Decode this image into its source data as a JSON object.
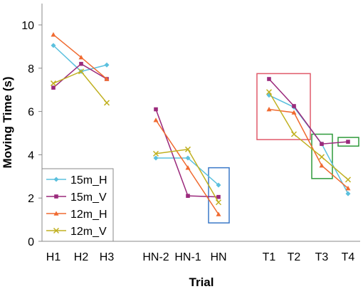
{
  "chart_data": {
    "type": "line",
    "xlabel": "Trial",
    "ylabel": "Moving Time (s)",
    "ylim": [
      0,
      11
    ],
    "yticks": [
      0,
      2,
      4,
      6,
      8,
      10
    ],
    "grid": false,
    "legend_position": "bottom-left",
    "categories": [
      "H1",
      "H2",
      "H3",
      "HN-2",
      "HN-1",
      "HN",
      "T1",
      "T2",
      "T3",
      "T4"
    ],
    "groups": [
      [
        0,
        1,
        2
      ],
      [
        3,
        4,
        5
      ],
      [
        6,
        7,
        8,
        9
      ]
    ],
    "series": [
      {
        "name": "15m_H",
        "color": "#5bc0de",
        "marker": "diamond",
        "values": [
          9.05,
          7.85,
          8.15,
          3.85,
          3.85,
          2.6,
          6.75,
          6.2,
          4.5,
          2.2
        ]
      },
      {
        "name": "15m_V",
        "color": "#9b2a7c",
        "marker": "square",
        "values": [
          7.1,
          8.2,
          7.5,
          6.1,
          2.1,
          2.05,
          7.5,
          6.25,
          4.5,
          4.6
        ]
      },
      {
        "name": "12m_H",
        "color": "#f06a30",
        "marker": "triangle",
        "values": [
          9.55,
          8.5,
          7.5,
          5.6,
          3.4,
          1.25,
          6.1,
          5.95,
          3.5,
          2.45
        ]
      },
      {
        "name": "12m_V",
        "color": "#c0b020",
        "marker": "x",
        "values": [
          7.3,
          7.85,
          6.4,
          4.05,
          4.25,
          1.8,
          6.9,
          4.95,
          3.9,
          2.85
        ]
      }
    ],
    "highlight_boxes": [
      {
        "color": "#e05a6a",
        "x_from": 6,
        "x_to": 7,
        "y_low": 4.7,
        "y_high": 7.75
      },
      {
        "color": "#3a78c8",
        "x_from": 5,
        "x_to": 5,
        "y_low": 0.85,
        "y_high": 3.4
      },
      {
        "color": "#2e9a3a",
        "x_from": 8,
        "x_to": 8,
        "y_low": 2.9,
        "y_high": 4.95
      },
      {
        "color": "#2e9a3a",
        "x_from": 9,
        "x_to": 9,
        "y_low": 4.4,
        "y_high": 4.8
      }
    ]
  }
}
